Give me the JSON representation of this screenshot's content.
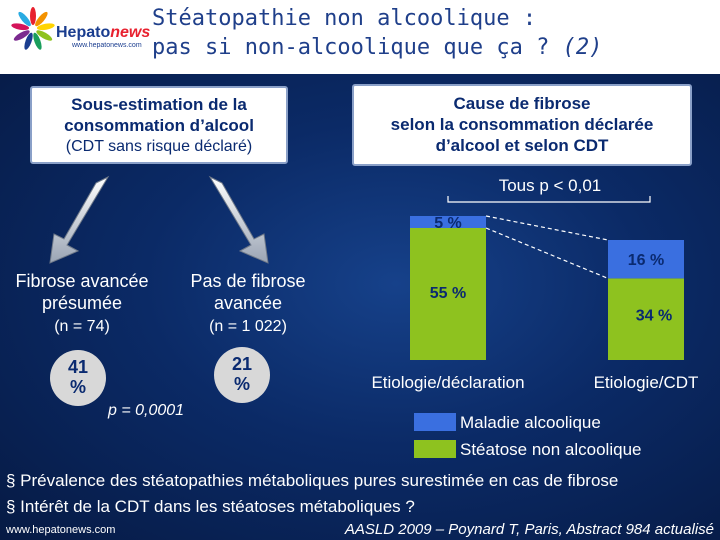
{
  "header": {
    "logo_brand": "Hepato",
    "logo_brand_suffix": "news",
    "logo_url": "www.hepatonews.com",
    "title_line1": "Stéatopathie non alcoolique :",
    "title_line2_main": "pas si non-alcoolique que ça ? ",
    "title_line2_em": "(2)"
  },
  "left": {
    "box_line1": "Sous-estimation de la",
    "box_line2": "consommation d’alcool",
    "box_line3": "(CDT sans risque déclaré)",
    "group1_line1": "Fibrose avancée",
    "group1_line2": "présumée",
    "group1_n": "(n = 74)",
    "group1_pct_value": "41",
    "group1_pct_unit": "%",
    "group2_line1": "Pas de fibrose",
    "group2_line2": "avancée",
    "group2_n": "(n = 1 022)",
    "group2_pct_value": "21",
    "group2_pct_unit": "%",
    "p_value": "p = 0,0001"
  },
  "right": {
    "box_line1": "Cause de fibrose",
    "box_line2": "selon la consommation déclarée",
    "box_line3": "d’alcool et selon CDT",
    "significance": "Tous p < 0,01"
  },
  "chart_data": {
    "type": "bar",
    "stacked": true,
    "categories": [
      "Etiologie/déclaration",
      "Etiologie/CDT"
    ],
    "series": [
      {
        "name": "Maladie alcoolique",
        "values": [
          5,
          16
        ],
        "labels": [
          "5 %",
          "16 %"
        ],
        "color": "#3a6fe0"
      },
      {
        "name": "Stéatose non alcoolique",
        "values": [
          55,
          34
        ],
        "labels": [
          "55 %",
          "34 %"
        ],
        "color": "#8ec21f"
      }
    ],
    "ylim": [
      0,
      60
    ],
    "legend_position": "bottom-right",
    "grid": false
  },
  "bullets": [
    "§ Prévalence des stéatopathies métaboliques pures surestimée en cas de fibrose",
    "§ Intérêt de la CDT dans les stéatoses métaboliques ?"
  ],
  "footer": {
    "url": "www.hepatonews.com",
    "reference": "AASLD 2009 – Poynard T, Paris, Abstract 984 actualisé"
  },
  "colors": {
    "background": "#0b2a66",
    "title": "#1f3f8a",
    "alcohol_bar": "#3a6fe0",
    "nafld_bar": "#8ec21f"
  }
}
